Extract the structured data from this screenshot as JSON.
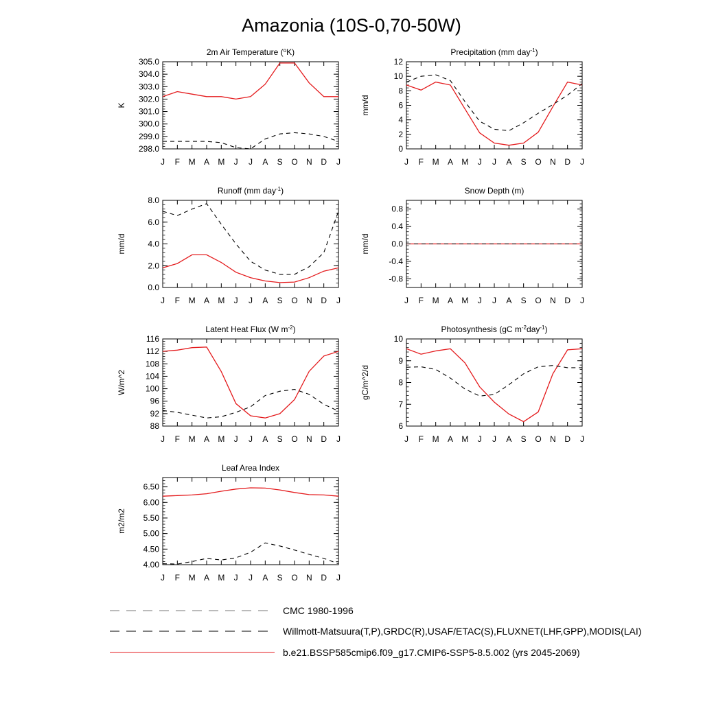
{
  "title": "Amazonia (10S-0,70-50W)",
  "colors": {
    "model": "#e41a1c",
    "obs": "#000000",
    "cmc": "#777777"
  },
  "legend": [
    {
      "label": "CMC 1980-1996",
      "style": "cmc"
    },
    {
      "label": "Willmott-Matsuura(T,P),GRDC(R),USAF/ETAC(S),FLUXNET(LHF,GPP),MODIS(LAI)",
      "style": "obs"
    },
    {
      "label": "b.e21.BSSP585cmip6.f09_g17.CMIP6-SSP5-8.5.002 (yrs 2045-2069)",
      "style": "model"
    }
  ],
  "chart_data": [
    {
      "type": "line",
      "title": "2m Air Temperature (°K)",
      "ylabel": "K",
      "x": [
        "J",
        "F",
        "M",
        "A",
        "M",
        "J",
        "J",
        "A",
        "S",
        "O",
        "N",
        "D",
        "J"
      ],
      "ylim": [
        298.0,
        305.0
      ],
      "yticks": [
        "298.0",
        "299.0",
        "300.0",
        "301.0",
        "302.0",
        "303.0",
        "304.0",
        "305.0"
      ],
      "series": [
        {
          "style": "model",
          "values": [
            302.2,
            302.6,
            302.4,
            302.2,
            302.2,
            302.0,
            302.2,
            303.2,
            304.9,
            304.9,
            303.3,
            302.2,
            302.2
          ]
        },
        {
          "style": "obs",
          "values": [
            298.6,
            298.6,
            298.6,
            298.6,
            298.5,
            298.1,
            298.0,
            298.8,
            299.2,
            299.3,
            299.2,
            299.0,
            298.6
          ]
        }
      ]
    },
    {
      "type": "line",
      "title": "Precipitation (mm day-1)",
      "ylabel": "mm/d",
      "x": [
        "J",
        "F",
        "M",
        "A",
        "M",
        "J",
        "J",
        "A",
        "S",
        "O",
        "N",
        "D",
        "J"
      ],
      "ylim": [
        0,
        12
      ],
      "yticks": [
        "0",
        "2",
        "4",
        "6",
        "8",
        "10",
        "12"
      ],
      "series": [
        {
          "style": "model",
          "values": [
            8.8,
            8.1,
            9.2,
            8.8,
            5.5,
            2.2,
            0.8,
            0.5,
            0.8,
            2.3,
            5.8,
            9.2,
            8.8
          ]
        },
        {
          "style": "obs",
          "values": [
            9.2,
            10.0,
            10.2,
            9.4,
            6.5,
            3.8,
            2.7,
            2.5,
            3.6,
            4.9,
            6.1,
            7.4,
            9.0
          ]
        }
      ]
    },
    {
      "type": "line",
      "title": "Runoff (mm day-1)",
      "ylabel": "mm/d",
      "x": [
        "J",
        "F",
        "M",
        "A",
        "M",
        "J",
        "J",
        "A",
        "S",
        "O",
        "N",
        "D",
        "J"
      ],
      "ylim": [
        0,
        8
      ],
      "yticks": [
        "0.0",
        "2.0",
        "4.0",
        "6.0",
        "8.0"
      ],
      "series": [
        {
          "style": "model",
          "values": [
            1.8,
            2.2,
            3.0,
            3.0,
            2.3,
            1.4,
            0.9,
            0.6,
            0.45,
            0.5,
            0.9,
            1.5,
            1.8
          ]
        },
        {
          "style": "obs",
          "values": [
            7.0,
            6.6,
            7.2,
            7.7,
            5.8,
            4.0,
            2.4,
            1.6,
            1.2,
            1.2,
            1.9,
            3.2,
            7.0
          ]
        }
      ]
    },
    {
      "type": "line",
      "title": "Snow Depth (m)",
      "ylabel": "mm/d",
      "x": [
        "J",
        "F",
        "M",
        "A",
        "M",
        "J",
        "J",
        "A",
        "S",
        "O",
        "N",
        "D",
        "J"
      ],
      "ylim": [
        -1.0,
        1.0
      ],
      "yticks": [
        "-0.8",
        "-0.4",
        "0.0",
        "0.4",
        "0.8"
      ],
      "series": [
        {
          "style": "model",
          "values": [
            0,
            0,
            0,
            0,
            0,
            0,
            0,
            0,
            0,
            0,
            0,
            0,
            0
          ]
        },
        {
          "style": "obs",
          "values": [
            0,
            0,
            0,
            0,
            0,
            0,
            0,
            0,
            0,
            0,
            0,
            0,
            0
          ]
        }
      ]
    },
    {
      "type": "line",
      "title": "Latent Heat Flux (W m-2)",
      "ylabel": "W/m^2",
      "x": [
        "J",
        "F",
        "M",
        "A",
        "M",
        "J",
        "J",
        "A",
        "S",
        "O",
        "N",
        "D",
        "J"
      ],
      "ylim": [
        88,
        116
      ],
      "yticks": [
        "88",
        "92",
        "96",
        "100",
        "104",
        "108",
        "112",
        "116"
      ],
      "series": [
        {
          "style": "model",
          "values": [
            112.0,
            112.4,
            113.2,
            113.4,
            105.5,
            95.2,
            91.3,
            90.6,
            92.0,
            96.5,
            105.6,
            110.5,
            112.0
          ]
        },
        {
          "style": "obs",
          "values": [
            93.0,
            92.4,
            91.5,
            90.6,
            91.0,
            92.4,
            94.2,
            97.8,
            99.2,
            99.8,
            98.2,
            95.0,
            92.8
          ]
        }
      ]
    },
    {
      "type": "line",
      "title": "Photosynthesis (gC m-2day-1)",
      "ylabel": "gC/m^2/d",
      "x": [
        "J",
        "F",
        "M",
        "A",
        "M",
        "J",
        "J",
        "A",
        "S",
        "O",
        "N",
        "D",
        "J"
      ],
      "ylim": [
        6,
        10
      ],
      "yticks": [
        "6",
        "7",
        "8",
        "9",
        "10"
      ],
      "series": [
        {
          "style": "model",
          "values": [
            9.55,
            9.3,
            9.45,
            9.55,
            8.9,
            7.8,
            7.1,
            6.55,
            6.2,
            6.65,
            8.4,
            9.5,
            9.55
          ]
        },
        {
          "style": "obs",
          "values": [
            8.7,
            8.72,
            8.6,
            8.2,
            7.7,
            7.38,
            7.45,
            7.9,
            8.4,
            8.72,
            8.78,
            8.68,
            8.68
          ]
        }
      ]
    },
    {
      "type": "line",
      "title": "Leaf Area Index",
      "ylabel": "m2/m2",
      "x": [
        "J",
        "F",
        "M",
        "A",
        "M",
        "J",
        "J",
        "A",
        "S",
        "O",
        "N",
        "D",
        "J"
      ],
      "ylim": [
        4.0,
        6.8
      ],
      "yticks": [
        "4.00",
        "4.50",
        "5.00",
        "5.50",
        "6.00",
        "6.50"
      ],
      "series": [
        {
          "style": "model",
          "values": [
            6.2,
            6.22,
            6.24,
            6.28,
            6.36,
            6.43,
            6.47,
            6.46,
            6.4,
            6.32,
            6.25,
            6.24,
            6.2
          ]
        },
        {
          "style": "obs",
          "values": [
            4.03,
            4.02,
            4.1,
            4.2,
            4.15,
            4.22,
            4.4,
            4.7,
            4.6,
            4.47,
            4.33,
            4.2,
            4.03
          ]
        }
      ]
    }
  ]
}
